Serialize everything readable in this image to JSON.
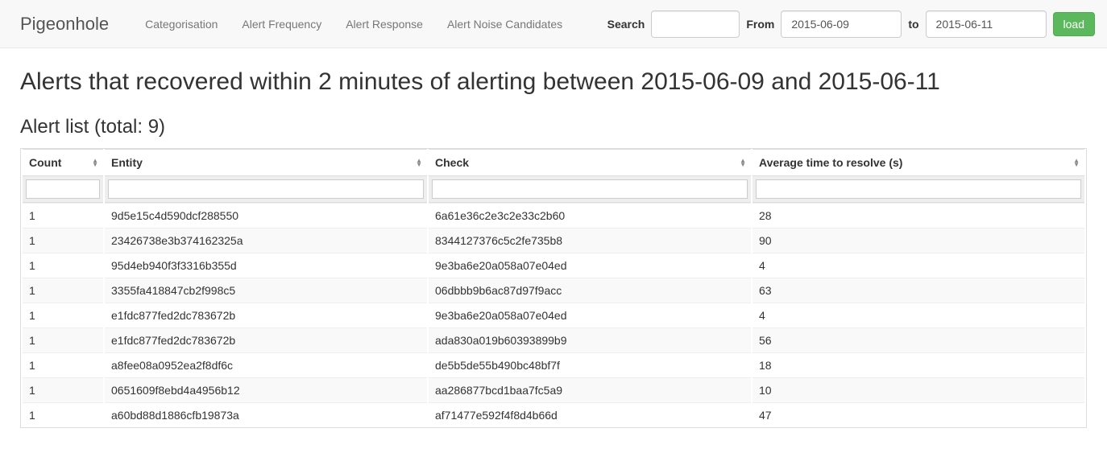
{
  "navbar": {
    "brand": "Pigeonhole",
    "links": [
      {
        "label": "Categorisation"
      },
      {
        "label": "Alert Frequency"
      },
      {
        "label": "Alert Response"
      },
      {
        "label": "Alert Noise Candidates"
      }
    ],
    "search_label": "Search",
    "search_value": "",
    "from_label": "From",
    "from_value": "2015-06-09",
    "to_label": "to",
    "to_value": "2015-06-11",
    "load_label": "load"
  },
  "page": {
    "title": "Alerts that recovered within 2 minutes of alerting between 2015-06-09 and 2015-06-11",
    "list_title": "Alert list (total: 9)"
  },
  "table": {
    "columns": [
      "Count",
      "Entity",
      "Check",
      "Average time to resolve (s)"
    ],
    "rows": [
      [
        "1",
        "9d5e15c4d590dcf288550",
        "6a61e36c2e3c2e33c2b60",
        "28"
      ],
      [
        "1",
        "23426738e3b374162325a",
        "8344127376c5c2fe735b8",
        "90"
      ],
      [
        "1",
        "95d4eb940f3f3316b355d",
        "9e3ba6e20a058a07e04ed",
        "4"
      ],
      [
        "1",
        "3355fa418847cb2f998c5",
        "06dbbb9b6ac87d97f9acc",
        "63"
      ],
      [
        "1",
        "e1fdc877fed2dc783672b",
        "9e3ba6e20a058a07e04ed",
        "4"
      ],
      [
        "1",
        "e1fdc877fed2dc783672b",
        "ada830a019b60393899b9",
        "56"
      ],
      [
        "1",
        "a8fee08a0952ea2f8df6c",
        "de5b5de55b490bc48bf7f",
        "18"
      ],
      [
        "1",
        "0651609f8ebd4a4956b12",
        "aa286877bcd1baa7fc5a9",
        "10"
      ],
      [
        "1",
        "a60bd88d1886cfb19873a",
        "af71477e592f4f8d4b66d",
        "47"
      ]
    ]
  },
  "colors": {
    "navbar_bg": "#f8f8f8",
    "navbar_border": "#e7e7e7",
    "brand_text": "#555555",
    "nav_link_text": "#777777",
    "btn_success_bg": "#5cb85c",
    "btn_success_border": "#4cae4c",
    "table_border": "#dddddd",
    "row_stripe": "#f9f9f9",
    "filter_bg": "#eeeeee"
  }
}
